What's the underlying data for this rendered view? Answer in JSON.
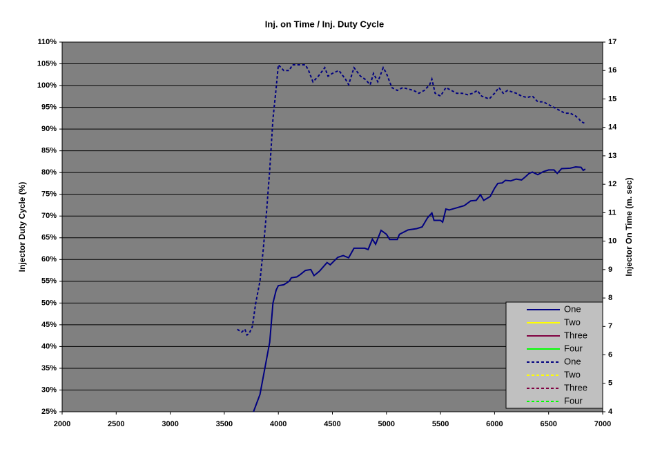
{
  "chart_data": {
    "type": "line",
    "title": "Inj. on Time / Inj. Duty Cycle",
    "y_label": "Injector Duty Cycle (%)",
    "y2_label": "Injector On Time (m. sec)",
    "xlim": [
      2000,
      7000
    ],
    "xticks": [
      2000,
      2500,
      3000,
      3500,
      4000,
      4500,
      5000,
      5500,
      6000,
      6500,
      7000
    ],
    "ylim": [
      25,
      110
    ],
    "yticks": [
      {
        "value": 25,
        "label": "25%"
      },
      {
        "value": 30,
        "label": "30%"
      },
      {
        "value": 35,
        "label": "35%"
      },
      {
        "value": 40,
        "label": "40%"
      },
      {
        "value": 45,
        "label": "45%"
      },
      {
        "value": 50,
        "label": "50%"
      },
      {
        "value": 55,
        "label": "55%"
      },
      {
        "value": 60,
        "label": "60%"
      },
      {
        "value": 65,
        "label": "65%"
      },
      {
        "value": 70,
        "label": "70%"
      },
      {
        "value": 75,
        "label": "75%"
      },
      {
        "value": 80,
        "label": "80%"
      },
      {
        "value": 85,
        "label": "85%"
      },
      {
        "value": 90,
        "label": "90%"
      },
      {
        "value": 95,
        "label": "95%"
      },
      {
        "value": 100,
        "label": "100%"
      },
      {
        "value": 105,
        "label": "105%"
      },
      {
        "value": 110,
        "label": "110%"
      }
    ],
    "y2lim": [
      4,
      17
    ],
    "y2ticks": [
      4,
      5,
      6,
      7,
      8,
      9,
      10,
      11,
      12,
      13,
      14,
      15,
      16,
      17
    ],
    "grid": true,
    "legend": "bottom-right",
    "series": [
      {
        "name": "One",
        "color": "#000080",
        "dashed": false,
        "x": [
          3770,
          3800,
          3830,
          3860,
          3890,
          3920,
          3950,
          3980,
          4000,
          4050,
          4100,
          4120,
          4170,
          4200,
          4250,
          4300,
          4330,
          4380,
          4450,
          4480,
          4550,
          4600,
          4650,
          4700,
          4800,
          4830,
          4870,
          4900,
          4950,
          5000,
          5030,
          5100,
          5120,
          5200,
          5280,
          5330,
          5380,
          5420,
          5440,
          5500,
          5520,
          5550,
          5580,
          5650,
          5720,
          5780,
          5830,
          5870,
          5900,
          5960,
          6000,
          6030,
          6070,
          6100,
          6150,
          6200,
          6250,
          6280,
          6320,
          6350,
          6400,
          6450,
          6500,
          6550,
          6580,
          6620,
          6700,
          6750,
          6800,
          6820,
          6840
        ],
        "values": [
          25,
          27,
          29,
          33,
          37,
          41,
          50,
          53,
          54,
          54.2,
          55,
          55.8,
          56,
          56.5,
          57.5,
          57.7,
          56.3,
          57.3,
          59.3,
          58.8,
          60.5,
          60.9,
          60.4,
          62.6,
          62.6,
          62.3,
          64.7,
          63.5,
          66.7,
          65.8,
          64.6,
          64.6,
          65.8,
          66.8,
          67.1,
          67.5,
          69.6,
          70.7,
          69,
          69,
          68.6,
          71.6,
          71.4,
          71.9,
          72.4,
          73.5,
          73.6,
          74.9,
          73.6,
          74.5,
          76.4,
          77.5,
          77.6,
          78.2,
          78.1,
          78.5,
          78.3,
          78.9,
          79.8,
          80.1,
          79.5,
          80.2,
          80.6,
          80.6,
          79.8,
          80.9,
          81,
          81.3,
          81.2,
          80.5,
          80.8
        ]
      },
      {
        "name": "Two",
        "color": "#ffff00",
        "dashed": false,
        "x": [],
        "values": []
      },
      {
        "name": "Three",
        "color": "#800040",
        "dashed": false,
        "x": [],
        "values": []
      },
      {
        "name": "Four",
        "color": "#00ff00",
        "dashed": false,
        "x": [],
        "values": []
      },
      {
        "name": "One",
        "color": "#000080",
        "dashed": true,
        "axis": "y2",
        "x": [
          3620,
          3660,
          3690,
          3710,
          3730,
          3760,
          3790,
          3830,
          3860,
          3890,
          3920,
          3950,
          3980,
          4000,
          4050,
          4100,
          4130,
          4200,
          4250,
          4280,
          4320,
          4370,
          4430,
          4460,
          4500,
          4560,
          4620,
          4650,
          4700,
          4760,
          4800,
          4850,
          4880,
          4920,
          4970,
          5000,
          5050,
          5100,
          5150,
          5200,
          5250,
          5300,
          5350,
          5400,
          5420,
          5450,
          5500,
          5550,
          5600,
          5650,
          5700,
          5750,
          5800,
          5840,
          5880,
          5950,
          6000,
          6040,
          6080,
          6120,
          6200,
          6250,
          6300,
          6350,
          6400,
          6450,
          6500,
          6550,
          6600,
          6650,
          6700,
          6750,
          6780,
          6800,
          6830
        ],
        "values": [
          6.9,
          6.8,
          6.9,
          6.7,
          6.75,
          7.0,
          7.8,
          8.6,
          9.7,
          11,
          12.5,
          14.3,
          15.4,
          16.2,
          16.0,
          16.0,
          16.2,
          16.2,
          16.2,
          16.0,
          15.6,
          15.8,
          16.1,
          15.8,
          15.9,
          16.0,
          15.7,
          15.5,
          16.1,
          15.8,
          15.7,
          15.5,
          15.9,
          15.6,
          16.1,
          15.9,
          15.4,
          15.3,
          15.4,
          15.35,
          15.3,
          15.2,
          15.3,
          15.5,
          15.7,
          15.2,
          15.1,
          15.4,
          15.3,
          15.2,
          15.2,
          15.15,
          15.2,
          15.3,
          15.1,
          15.0,
          15.2,
          15.4,
          15.2,
          15.3,
          15.2,
          15.1,
          15.05,
          15.1,
          14.9,
          14.9,
          14.8,
          14.7,
          14.6,
          14.5,
          14.5,
          14.4,
          14.3,
          14.2,
          14.15
        ]
      },
      {
        "name": "Two",
        "color": "#ffff00",
        "dashed": true,
        "axis": "y2",
        "x": [],
        "values": []
      },
      {
        "name": "Three",
        "color": "#800040",
        "dashed": true,
        "axis": "y2",
        "x": [],
        "values": []
      },
      {
        "name": "Four",
        "color": "#00ff00",
        "dashed": true,
        "axis": "y2",
        "x": [],
        "values": []
      }
    ]
  }
}
